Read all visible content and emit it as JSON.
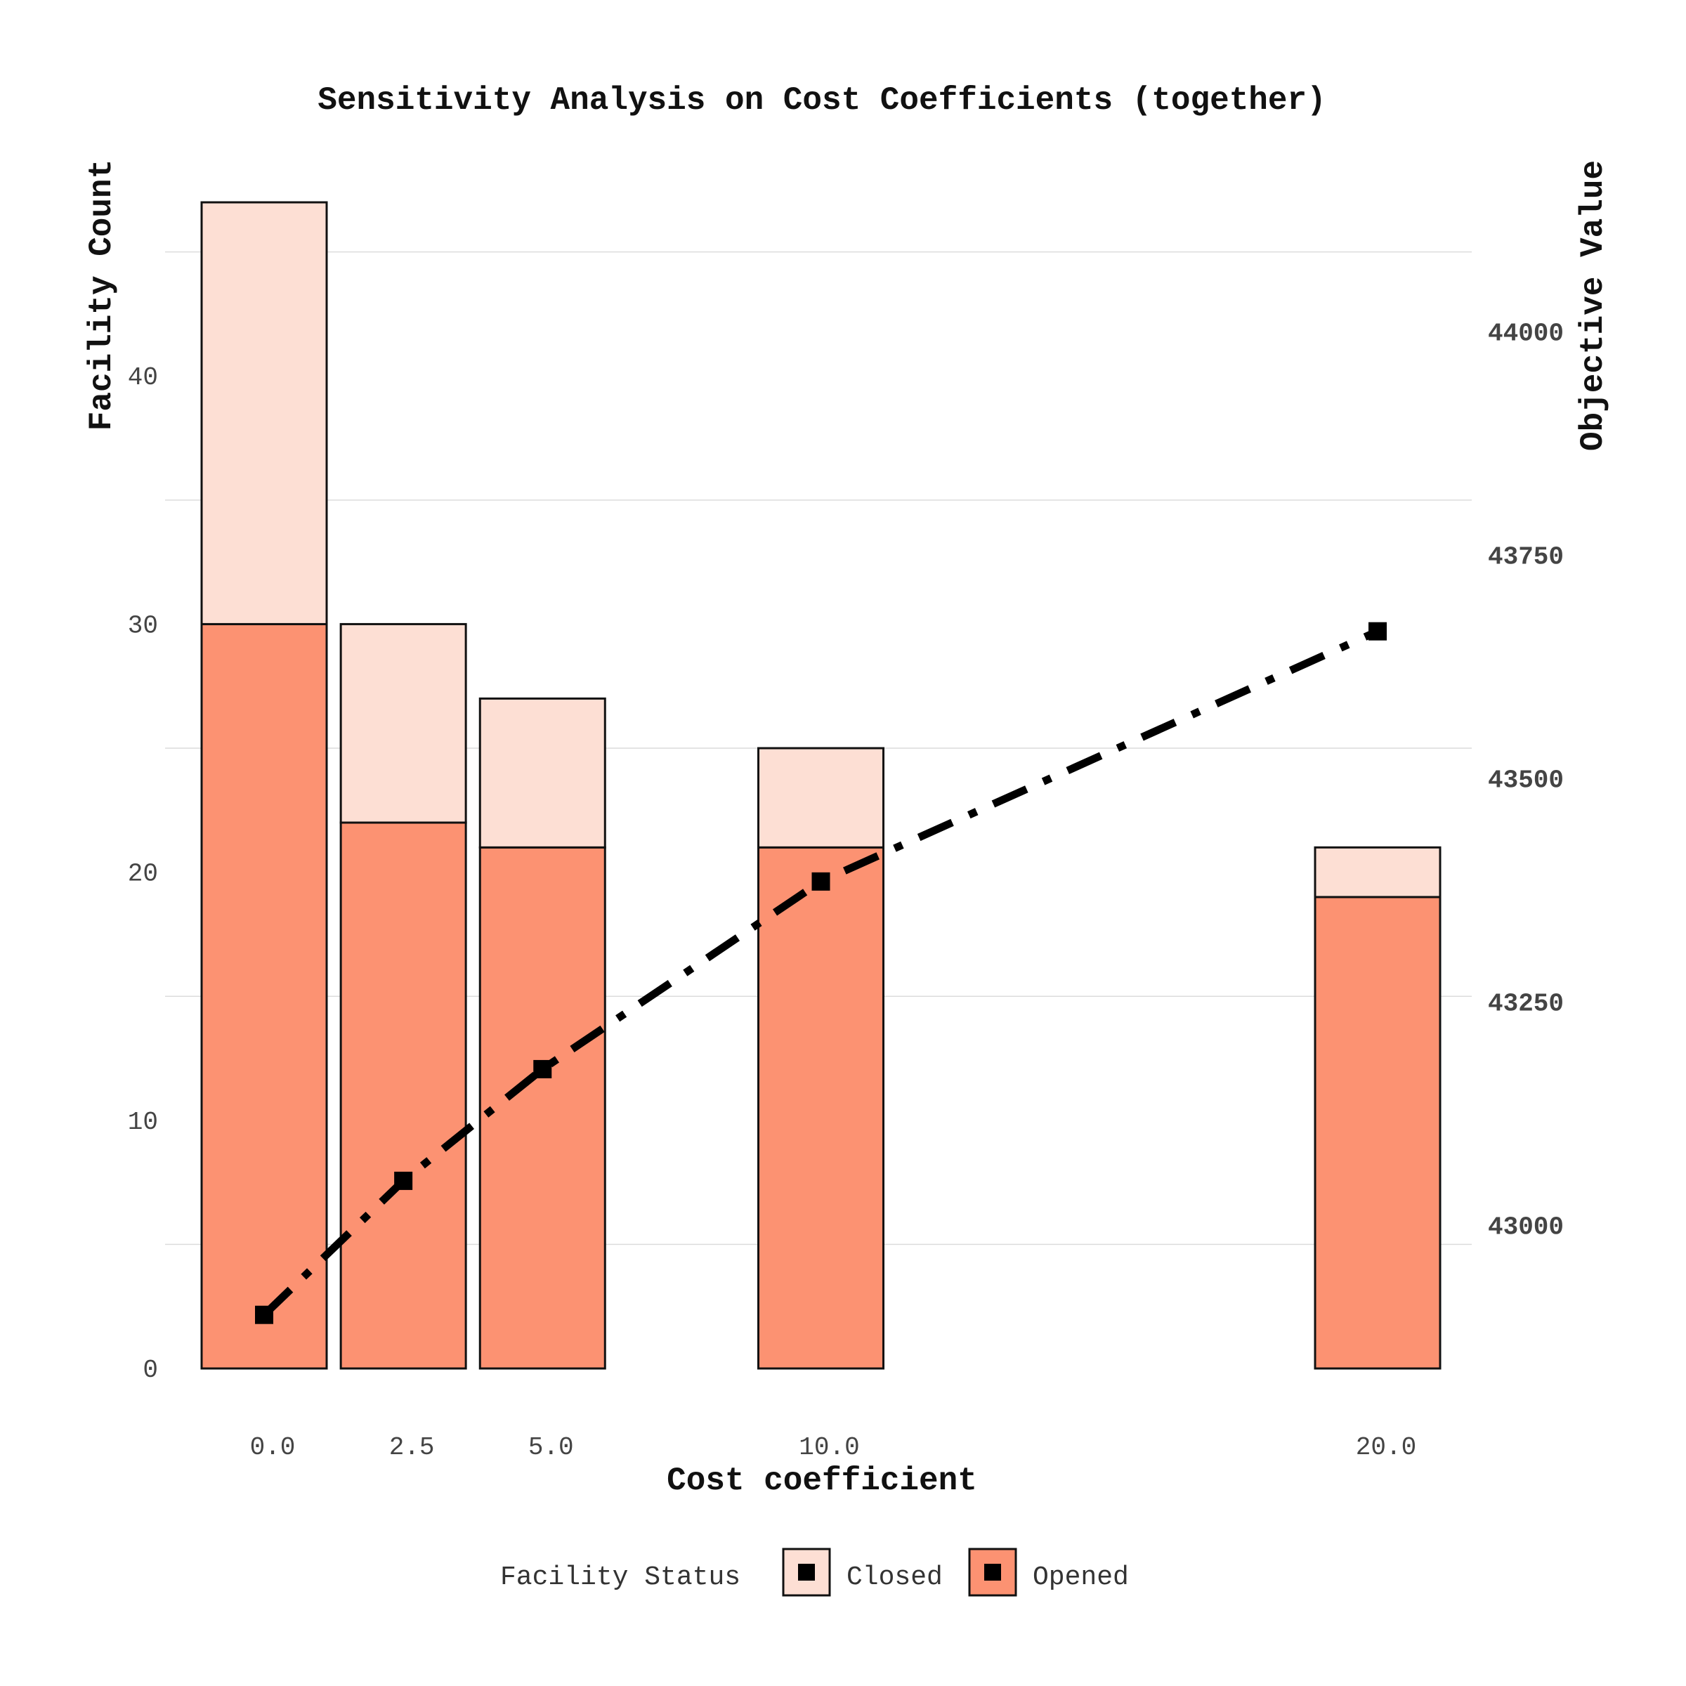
{
  "chart_data": {
    "type": "bar",
    "stacked": true,
    "title": "Sensitivity Analysis on Cost Coefficients (together)",
    "xlabel": "Cost coefficient",
    "ylabel_left": "Facility Count",
    "ylabel_right": "Objective Value",
    "x": [
      0.0,
      2.5,
      5.0,
      10.0,
      20.0
    ],
    "x_tick_labels": [
      "0.0",
      "2.5",
      "5.0",
      "10.0",
      "20.0"
    ],
    "series": [
      {
        "name": "Opened",
        "color": "#FC9272",
        "values": [
          30,
          22,
          21,
          21,
          19
        ]
      },
      {
        "name": "Closed",
        "color": "#FDDFD4",
        "values": [
          17,
          8,
          6,
          4,
          2
        ]
      }
    ],
    "line_series": {
      "name": "Objective Value",
      "axis": "right",
      "style": "dashdot",
      "color": "#000000",
      "values": [
        42900,
        43050,
        43175,
        43385,
        43665
      ]
    },
    "ylim_left": [
      0,
      47
    ],
    "yticks_left": [
      "0",
      "10",
      "20",
      "30",
      "40"
    ],
    "ylim_right": [
      42840,
      44175
    ],
    "yticks_right": [
      "43000",
      "43250",
      "43500",
      "43750",
      "44000"
    ],
    "legend": {
      "title": "Facility Status",
      "entries": [
        "Closed",
        "Opened"
      ],
      "position": "bottom"
    }
  }
}
